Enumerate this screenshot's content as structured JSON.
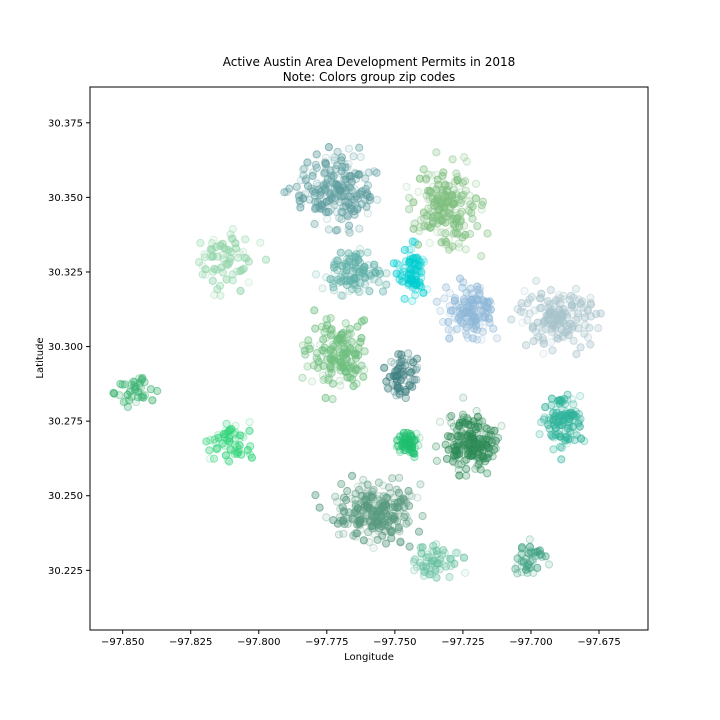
{
  "chart_data": {
    "type": "scatter",
    "title": "Active Austin Area Development Permits in 2018",
    "subtitle": "Note: Colors group zip codes",
    "xlabel": "Longitude",
    "ylabel": "Latitude",
    "xlim": [
      -97.862,
      -97.657
    ],
    "ylim": [
      30.205,
      30.387
    ],
    "x_ticks": [
      -97.85,
      -97.825,
      -97.8,
      -97.775,
      -97.75,
      -97.725,
      -97.7,
      -97.675
    ],
    "x_tick_labels": [
      "−97.850",
      "−97.825",
      "−97.800",
      "−97.775",
      "−97.750",
      "−97.725",
      "−97.700",
      "−97.675"
    ],
    "y_ticks": [
      30.225,
      30.25,
      30.275,
      30.3,
      30.325,
      30.35,
      30.375
    ],
    "y_tick_labels": [
      "30.225",
      "30.250",
      "30.275",
      "30.300",
      "30.325",
      "30.350",
      "30.375"
    ],
    "grid": false,
    "marker_alpha": 0.35,
    "clusters": [
      {
        "color": "#5f9ea0",
        "center": [
          -97.772,
          30.352
        ],
        "spread": [
          0.014,
          0.013
        ],
        "count": 210
      },
      {
        "color": "#7fbf7f",
        "center": [
          -97.731,
          30.347
        ],
        "spread": [
          0.012,
          0.014
        ],
        "count": 190
      },
      {
        "color": "#90d4a8",
        "center": [
          -97.812,
          30.33
        ],
        "spread": [
          0.012,
          0.012
        ],
        "count": 70
      },
      {
        "color": "#5fb0a8",
        "center": [
          -97.765,
          30.325
        ],
        "spread": [
          0.01,
          0.008
        ],
        "count": 110
      },
      {
        "color": "#00ced1",
        "center": [
          -97.744,
          30.325
        ],
        "spread": [
          0.005,
          0.008
        ],
        "count": 90
      },
      {
        "color": "#8fb8d8",
        "center": [
          -97.722,
          30.312
        ],
        "spread": [
          0.01,
          0.009
        ],
        "count": 140
      },
      {
        "color": "#a9c4cc",
        "center": [
          -97.69,
          30.31
        ],
        "spread": [
          0.013,
          0.01
        ],
        "count": 180
      },
      {
        "color": "#6fbf7f",
        "center": [
          -97.771,
          30.298
        ],
        "spread": [
          0.011,
          0.012
        ],
        "count": 170
      },
      {
        "color": "#408080",
        "center": [
          -97.747,
          30.29
        ],
        "spread": [
          0.006,
          0.008
        ],
        "count": 70
      },
      {
        "color": "#2e8b57",
        "center": [
          -97.722,
          30.268
        ],
        "spread": [
          0.01,
          0.01
        ],
        "count": 190
      },
      {
        "color": "#2fb39a",
        "center": [
          -97.688,
          30.275
        ],
        "spread": [
          0.008,
          0.009
        ],
        "count": 110
      },
      {
        "color": "#20c070",
        "center": [
          -97.745,
          30.268
        ],
        "spread": [
          0.004,
          0.004
        ],
        "count": 60
      },
      {
        "color": "#3cb371",
        "center": [
          -97.845,
          30.285
        ],
        "spread": [
          0.008,
          0.005
        ],
        "count": 40
      },
      {
        "color": "#32d47a",
        "center": [
          -97.81,
          30.268
        ],
        "spread": [
          0.01,
          0.007
        ],
        "count": 60
      },
      {
        "color": "#5a9a80",
        "center": [
          -97.758,
          30.245
        ],
        "spread": [
          0.015,
          0.01
        ],
        "count": 240
      },
      {
        "color": "#66c0a0",
        "center": [
          -97.735,
          30.228
        ],
        "spread": [
          0.01,
          0.007
        ],
        "count": 60
      },
      {
        "color": "#3ca080",
        "center": [
          -97.7,
          30.228
        ],
        "spread": [
          0.006,
          0.006
        ],
        "count": 40
      }
    ]
  }
}
